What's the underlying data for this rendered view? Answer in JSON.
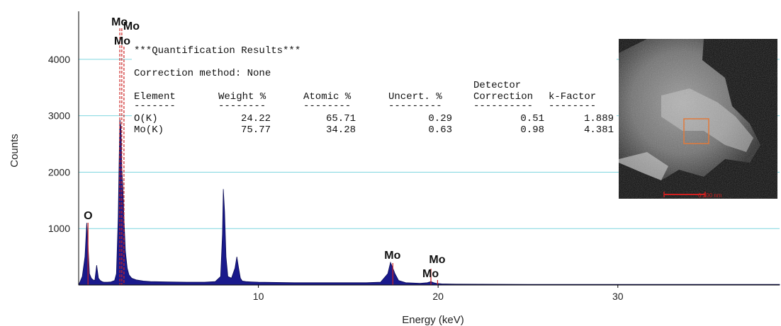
{
  "chart_data": {
    "type": "area",
    "xlabel": "Energy (keV)",
    "ylabel": "Counts",
    "xlim": [
      0,
      39
    ],
    "ylim": [
      0,
      4500
    ],
    "x_ticks": [
      10,
      20,
      30
    ],
    "y_ticks": [
      1000,
      2000,
      3000,
      4000
    ],
    "grid": true,
    "series": [
      {
        "x": [
          0.0,
          0.2,
          0.35,
          0.45,
          0.52,
          0.6,
          0.7,
          0.8,
          0.9,
          1.0,
          1.1,
          1.2,
          1.3,
          1.4,
          1.6,
          1.8,
          2.0,
          2.1,
          2.2,
          2.29,
          2.35,
          2.4,
          2.45,
          2.52,
          2.6,
          2.7,
          2.8,
          2.95,
          3.2,
          3.6,
          4.0,
          5.0,
          6.0,
          7.0,
          7.6,
          7.9,
          8.0,
          8.05,
          8.12,
          8.2,
          8.3,
          8.5,
          8.7,
          8.8,
          8.9,
          9.0,
          9.1,
          9.3,
          9.6,
          10.0,
          11.0,
          12.0,
          13.0,
          14.0,
          15.0,
          16.0,
          16.8,
          17.2,
          17.35,
          17.48,
          17.6,
          17.8,
          18.2,
          19.0,
          19.4,
          19.6,
          19.75,
          19.9,
          20.2,
          21.0,
          25.0,
          30.0,
          35.0,
          39.0
        ],
        "values": [
          0,
          150,
          500,
          1100,
          700,
          200,
          120,
          90,
          80,
          350,
          120,
          80,
          60,
          50,
          50,
          55,
          80,
          200,
          1200,
          2950,
          2800,
          2100,
          1800,
          1200,
          600,
          300,
          180,
          120,
          90,
          70,
          60,
          55,
          50,
          50,
          60,
          150,
          900,
          1700,
          1300,
          500,
          150,
          120,
          300,
          500,
          300,
          120,
          70,
          60,
          55,
          50,
          45,
          40,
          40,
          40,
          40,
          40,
          50,
          200,
          400,
          300,
          200,
          80,
          40,
          30,
          40,
          60,
          40,
          30,
          20,
          15,
          10,
          10,
          10,
          10
        ]
      }
    ],
    "peak_markers": [
      {
        "label": "O",
        "energy": 0.52
      },
      {
        "label": "Mo",
        "energy": 2.29
      },
      {
        "label": "Mo",
        "energy": 2.4
      },
      {
        "label": "Mo",
        "energy": 2.52
      },
      {
        "label": "Mo",
        "energy": 17.48
      },
      {
        "label": "Mo",
        "energy": 19.6
      },
      {
        "label": "Mo",
        "energy": 19.97
      }
    ],
    "colors": {
      "fill": "#1a1a8c",
      "peak_line": "#cc2222",
      "grid": "#7fd6df",
      "axis": "#000000"
    }
  },
  "quant": {
    "title": "***Quantification Results***",
    "method": "Correction method: None",
    "columns": [
      "Element",
      "Weight %",
      "Atomic %",
      "Uncert. %",
      "Detector\nCorrection",
      "k-Factor"
    ],
    "separator": [
      "-------",
      "--------",
      "--------",
      "---------",
      "----------",
      "--------"
    ],
    "rows": [
      [
        "O(K)",
        "24.22",
        "65.71",
        "0.29",
        "0.51",
        "1.889"
      ],
      [
        "Mo(K)",
        "75.77",
        "34.28",
        "0.63",
        "0.98",
        "4.381"
      ]
    ]
  },
  "sem_image": {
    "scale_label": "0.200 nm",
    "roi_color": "#e07a3c",
    "scale_color": "#d02020"
  }
}
